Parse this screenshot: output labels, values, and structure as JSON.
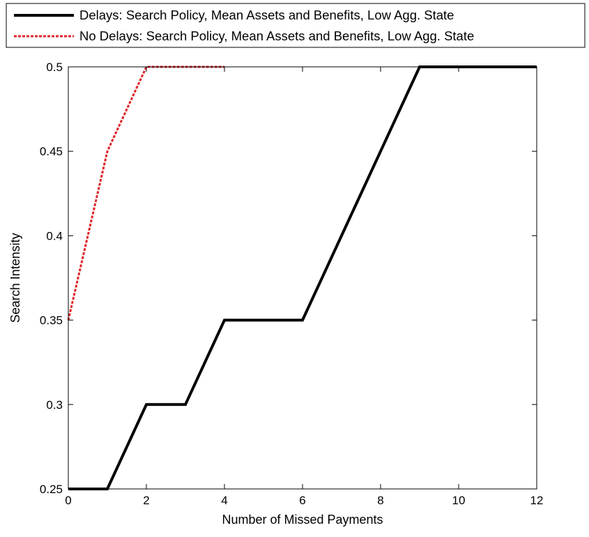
{
  "chart_data": {
    "type": "line",
    "title": "",
    "xlabel": "Number of Missed Payments",
    "ylabel": "Search Intensity",
    "xlim": [
      0,
      12
    ],
    "ylim": [
      0.25,
      0.5
    ],
    "xticks": [
      0,
      2,
      4,
      6,
      8,
      10,
      12
    ],
    "yticks": [
      0.25,
      0.3,
      0.35,
      0.4,
      0.45,
      0.5
    ],
    "xtick_labels": [
      "0",
      "2",
      "4",
      "6",
      "8",
      "10",
      "12"
    ],
    "ytick_labels": [
      "0.25",
      "0.3",
      "0.35",
      "0.4",
      "0.45",
      "0.5"
    ],
    "grid": false,
    "legend_position": "top",
    "series": [
      {
        "name": "Delays: Search Policy, Mean Assets and Benefits, Low Agg. State",
        "color": "#000000",
        "style": "solid",
        "x": [
          0,
          1,
          2,
          3,
          4,
          5,
          6,
          7,
          8,
          9,
          10,
          11,
          12
        ],
        "y": [
          0.25,
          0.25,
          0.3,
          0.3,
          0.35,
          0.35,
          0.35,
          0.4,
          0.45,
          0.5,
          0.5,
          0.5,
          0.5
        ]
      },
      {
        "name": "No Delays: Search Policy, Mean Assets and Benefits, Low Agg. State",
        "color": "#e0252a",
        "style": "dashed",
        "x": [
          0,
          1,
          2,
          3,
          4
        ],
        "y": [
          0.35,
          0.45,
          0.5,
          0.5,
          0.5
        ]
      }
    ]
  }
}
